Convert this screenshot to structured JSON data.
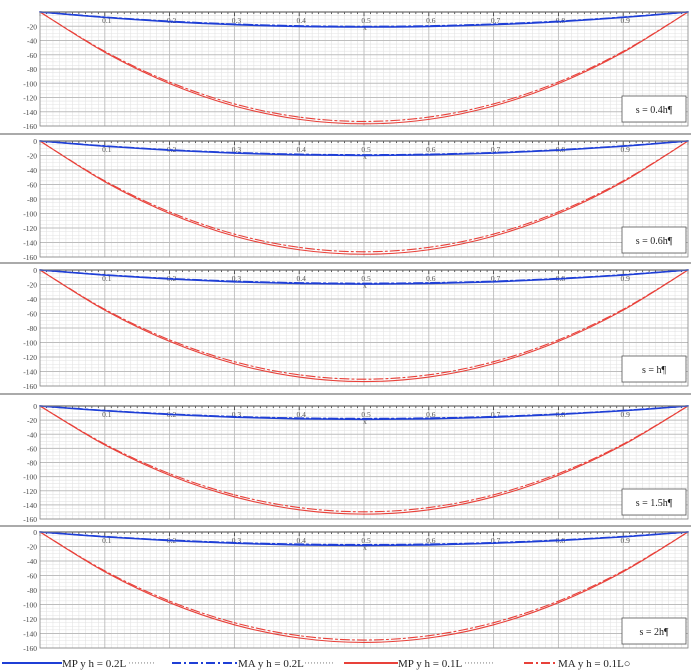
{
  "colors": {
    "mp_h02": "#1f3fd6",
    "ma_h02": "#1f3fd6",
    "mp_h01": "#e8413a",
    "ma_h01": "#e8413a",
    "grid_major": "#bdbdbd",
    "grid_minor": "#e3e3e3",
    "axis": "#3a3a3a"
  },
  "legend": {
    "items": [
      {
        "label": "MP y h = 0.2L",
        "series": "mp_h02",
        "dash": "solid",
        "trail": "·········"
      },
      {
        "label": "MA y h = 0.2L",
        "series": "ma_h02",
        "dash": "dashdot",
        "trail": "··········"
      },
      {
        "label": "MP y h = 0.1L",
        "series": "mp_h01",
        "dash": "solid",
        "trail": "··········"
      },
      {
        "label": "MA y h = 0.1L○",
        "series": "ma_h01",
        "dash": "dashdot",
        "trail": ""
      }
    ]
  },
  "chart_data": [
    {
      "type": "line",
      "label": "s = 0.4h¶",
      "x_axis_label": "x",
      "ylim": [
        -160,
        0
      ],
      "xlim": [
        0,
        1
      ],
      "x_ticks": [
        "0.1",
        "0.2",
        "0.3",
        "0.4",
        "0.5",
        "0.6",
        "0.7",
        "0.8",
        "0.9"
      ],
      "y_ticks": [
        "-20",
        "-40",
        "-60",
        "-80",
        "-100",
        "-120",
        "-140",
        "-160"
      ],
      "grid": true,
      "x": [
        0,
        0.1,
        0.2,
        0.3,
        0.4,
        0.5,
        0.6,
        0.7,
        0.8,
        0.9,
        1
      ],
      "series": [
        {
          "name": "MP y h = 0.2L",
          "key": "mp_h02",
          "values": [
            0,
            -7.6,
            -13.6,
            -17.8,
            -20.3,
            -21.1,
            -20.3,
            -17.8,
            -13.6,
            -7.6,
            0
          ]
        },
        {
          "name": "MA y h = 0.2L",
          "key": "ma_h02",
          "values": [
            0,
            -7.2,
            -13,
            -17,
            -19.5,
            -20.3,
            -19.5,
            -17,
            -13,
            -7.2,
            0
          ]
        },
        {
          "name": "MP y h = 0.1L",
          "key": "mp_h01",
          "values": [
            0,
            -56.5,
            -100.5,
            -131.9,
            -150.7,
            -157,
            -150.7,
            -131.9,
            -100.5,
            -56.5,
            0
          ]
        },
        {
          "name": "MA y h = 0.1L",
          "key": "ma_h01",
          "values": [
            0,
            -55.3,
            -98.3,
            -129,
            -147.5,
            -153.6,
            -147.5,
            -129,
            -98.3,
            -55.3,
            0
          ]
        }
      ]
    },
    {
      "type": "line",
      "label": "s = 0.6h¶",
      "x_axis_label": "x",
      "ylim": [
        -160,
        0
      ],
      "xlim": [
        0,
        1
      ],
      "x_ticks": [
        "0.1",
        "0.2",
        "0.3",
        "0.4",
        "0.5",
        "0.6",
        "0.7",
        "0.8",
        "0.9"
      ],
      "y_ticks": [
        "0",
        "-20",
        "-40",
        "-60",
        "-80",
        "-100",
        "-120",
        "-140",
        "-160"
      ],
      "grid": true,
      "x": [
        0,
        0.1,
        0.2,
        0.3,
        0.4,
        0.5,
        0.6,
        0.7,
        0.8,
        0.9,
        1
      ],
      "series": [
        {
          "name": "MP y h = 0.2L",
          "key": "mp_h02",
          "values": [
            0,
            -7.2,
            -12.8,
            -16.8,
            -19.2,
            -20,
            -19.2,
            -16.8,
            -12.8,
            -7.2,
            0
          ]
        },
        {
          "name": "MA y h = 0.2L",
          "key": "ma_h02",
          "values": [
            0,
            -6.8,
            -12.2,
            -16,
            -18.3,
            -19.1,
            -18.3,
            -16,
            -12.2,
            -6.8,
            0
          ]
        },
        {
          "name": "MP y h = 0.1L",
          "key": "mp_h01",
          "values": [
            0,
            -56.2,
            -100,
            -131.2,
            -150,
            -156.2,
            -150,
            -131.2,
            -100,
            -56.2,
            0
          ]
        },
        {
          "name": "MA y h = 0.1L",
          "key": "ma_h01",
          "values": [
            0,
            -55,
            -97.8,
            -128.4,
            -146.7,
            -152.8,
            -146.7,
            -128.4,
            -97.8,
            -55,
            0
          ]
        }
      ]
    },
    {
      "type": "line",
      "label": "s = h¶",
      "x_axis_label": "x",
      "ylim": [
        -160,
        0
      ],
      "xlim": [
        0,
        1
      ],
      "x_ticks": [
        "0.1",
        "0.2",
        "0.3",
        "0.4",
        "0.5",
        "0.6",
        "0.7",
        "0.8",
        "0.9"
      ],
      "y_ticks": [
        "0",
        "-20",
        "-40",
        "-60",
        "-80",
        "-100",
        "-120",
        "-140",
        "-160"
      ],
      "grid": true,
      "x": [
        0,
        0.1,
        0.2,
        0.3,
        0.4,
        0.5,
        0.6,
        0.7,
        0.8,
        0.9,
        1
      ],
      "series": [
        {
          "name": "MP y h = 0.2L",
          "key": "mp_h02",
          "values": [
            0,
            -7,
            -12.5,
            -16.4,
            -18.7,
            -19.5,
            -18.7,
            -16.4,
            -12.5,
            -7,
            0
          ]
        },
        {
          "name": "MA y h = 0.2L",
          "key": "ma_h02",
          "values": [
            0,
            -6.6,
            -11.8,
            -15.5,
            -17.7,
            -18.4,
            -17.7,
            -15.5,
            -11.8,
            -6.6,
            0
          ]
        },
        {
          "name": "MP y h = 0.1L",
          "key": "mp_h01",
          "values": [
            0,
            -55.4,
            -98.5,
            -129.3,
            -147.7,
            -153.9,
            -147.7,
            -129.3,
            -98.5,
            -55.4,
            0
          ]
        },
        {
          "name": "MA y h = 0.1L",
          "key": "ma_h01",
          "values": [
            0,
            -54.2,
            -96.4,
            -126.5,
            -144.6,
            -150.6,
            -144.6,
            -126.5,
            -96.4,
            -54.2,
            0
          ]
        }
      ]
    },
    {
      "type": "line",
      "label": "s = 1.5h¶",
      "x_axis_label": "x",
      "ylim": [
        -160,
        0
      ],
      "xlim": [
        0,
        1
      ],
      "x_ticks": [
        "0.1",
        "0.2",
        "0.3",
        "0.4",
        "0.5",
        "0.6",
        "0.7",
        "0.8",
        "0.9"
      ],
      "y_ticks": [
        "0",
        "-20",
        "-40",
        "-60",
        "-80",
        "-100",
        "-120",
        "-140",
        "-160"
      ],
      "grid": true,
      "x": [
        0,
        0.1,
        0.2,
        0.3,
        0.4,
        0.5,
        0.6,
        0.7,
        0.8,
        0.9,
        1
      ],
      "series": [
        {
          "name": "MP y h = 0.2L",
          "key": "mp_h02",
          "values": [
            0,
            -6.8,
            -12.1,
            -15.9,
            -18.2,
            -18.9,
            -18.2,
            -15.9,
            -12.1,
            -6.8,
            0
          ]
        },
        {
          "name": "MA y h = 0.2L",
          "key": "ma_h02",
          "values": [
            0,
            -6.4,
            -11.4,
            -15,
            -17.1,
            -17.8,
            -17.1,
            -15,
            -11.4,
            -6.4,
            0
          ]
        },
        {
          "name": "MP y h = 0.1L",
          "key": "mp_h01",
          "values": [
            0,
            -55.1,
            -98,
            -128.6,
            -147,
            -153.1,
            -147,
            -128.6,
            -98,
            -55.1,
            0
          ]
        },
        {
          "name": "MA y h = 0.1L",
          "key": "ma_h01",
          "values": [
            0,
            -53.9,
            -95.8,
            -125.8,
            -143.8,
            -149.8,
            -143.8,
            -125.8,
            -95.8,
            -53.9,
            0
          ]
        }
      ]
    },
    {
      "type": "line",
      "label": "s = 2h¶",
      "x_axis_label": "x",
      "ylim": [
        -160,
        0
      ],
      "xlim": [
        0,
        1
      ],
      "x_ticks": [
        "0.1",
        "0.2",
        "0.3",
        "0.4",
        "0.5",
        "0.6",
        "0.7",
        "0.8",
        "0.9"
      ],
      "y_ticks": [
        "0",
        "-20",
        "-40",
        "-60",
        "-80",
        "-100",
        "-120",
        "-140",
        "-160"
      ],
      "grid": true,
      "x": [
        0,
        0.1,
        0.2,
        0.3,
        0.4,
        0.5,
        0.6,
        0.7,
        0.8,
        0.9,
        1
      ],
      "series": [
        {
          "name": "MP y h = 0.2L",
          "key": "mp_h02",
          "values": [
            0,
            -6.7,
            -11.9,
            -15.6,
            -17.9,
            -18.6,
            -17.9,
            -15.6,
            -11.9,
            -6.7,
            0
          ]
        },
        {
          "name": "MA y h = 0.2L",
          "key": "ma_h02",
          "values": [
            0,
            -6.3,
            -11.2,
            -14.7,
            -16.8,
            -17.5,
            -16.8,
            -14.7,
            -11.2,
            -6.3,
            0
          ]
        },
        {
          "name": "MP y h = 0.1L",
          "key": "mp_h01",
          "values": [
            0,
            -54.8,
            -97.5,
            -128,
            -146.2,
            -152.3,
            -146.2,
            -128,
            -97.5,
            -54.8,
            0
          ]
        },
        {
          "name": "MA y h = 0.1L",
          "key": "ma_h01",
          "values": [
            0,
            -53.6,
            -95.3,
            -125.1,
            -143,
            -149,
            -143,
            -125.1,
            -95.3,
            -53.6,
            0
          ]
        }
      ]
    }
  ]
}
